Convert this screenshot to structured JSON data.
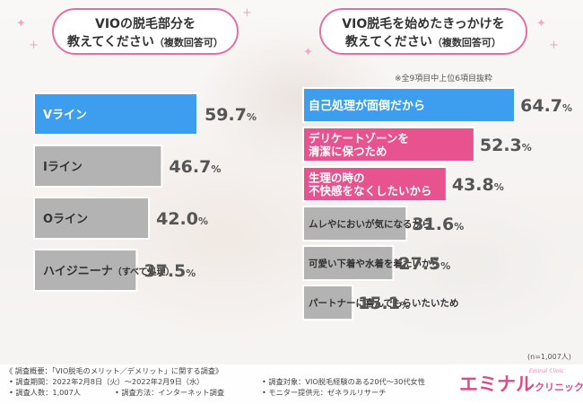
{
  "left_question": {
    "line1": "VIOの脱毛部分を",
    "line2": "教えてください",
    "note": "（複数回答可）"
  },
  "right_question": {
    "line1": "VIO脱毛を始めたきっかけを",
    "line2": "教えてください",
    "note": "（複数回答可）"
  },
  "top_note": "※全9項目中上位6項目抜粋",
  "n_note": "(n=1,007人)",
  "colors": {
    "highlight_blue": "#3d9ef0",
    "highlight_pink": "#e8528e",
    "neutral_gray": "#b3b3b3",
    "border_pink": "#e56fa2",
    "logo_pink": "#d84f8c"
  },
  "chart_data": [
    {
      "type": "bar",
      "orientation": "horizontal",
      "unit": "%",
      "categories": [
        "Vライン",
        "Iライン",
        "Oライン",
        "ハイジニーナ（すべて処理）"
      ],
      "values": [
        59.7,
        46.7,
        42.0,
        37.5
      ],
      "labels": [
        "59.7%",
        "46.7%",
        "42.0%",
        "37.5%"
      ],
      "highlight_top": 1,
      "xlim": [
        0,
        100
      ]
    },
    {
      "type": "bar",
      "orientation": "horizontal",
      "unit": "%",
      "categories": [
        "自己処理が面倒だから",
        "デリケートゾーンを清潔に保つため",
        "生理の時の不快感をなくしたいから",
        "ムレやにおいが気になるから",
        "可愛い下着や水着を着たいから",
        "パートナーに喜んでもらいたいため"
      ],
      "label_lines": [
        [
          "自己処理が面倒だから"
        ],
        [
          "デリケートゾーンを",
          "清潔に保つため"
        ],
        [
          "生理の時の",
          "不快感をなくしたいから"
        ],
        [
          "ムレやにおいが気になるから"
        ],
        [
          "可愛い下着や水着を着たいから"
        ],
        [
          "パートナーに喜んでもらいたいため"
        ]
      ],
      "values": [
        64.7,
        52.3,
        43.8,
        31.6,
        27.5,
        15.1
      ],
      "labels": [
        "64.7%",
        "52.3%",
        "43.8%",
        "31.6%",
        "27.5%",
        "15.1%"
      ],
      "highlight_top": 3,
      "xlim": [
        0,
        100
      ]
    }
  ],
  "footer": {
    "survey_title": "《 調査概要：「VIO脱毛のメリット／デメリット」に関する調査》",
    "period": "• 調査期間：2022年2月8日（火）～2022年2月9日（水）",
    "count": "• 調査人数：1,007人",
    "method": "• 調査方法：インターネット調査",
    "target": "• 調査対象：VIO脱毛経験のある20代～30代女性",
    "provider": "• モニター提供元：ゼネラルリサーチ"
  },
  "logo": {
    "main": "エミナル",
    "sub": "クリニック",
    "tagline": "Eminal Clinic"
  }
}
